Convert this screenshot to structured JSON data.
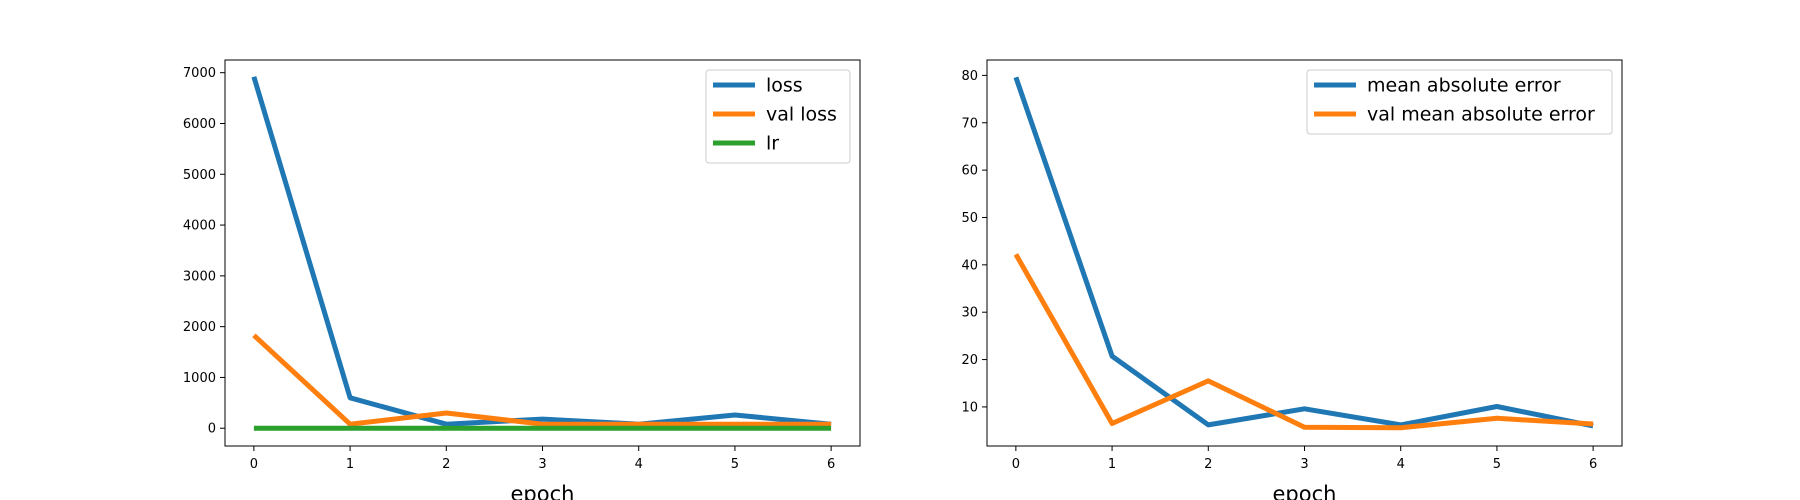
{
  "chart_data": [
    {
      "type": "line",
      "title": "",
      "xlabel": "epoch",
      "ylabel": "",
      "x": [
        0,
        1,
        2,
        3,
        4,
        5,
        6
      ],
      "xlim": [
        -0.3,
        6.3
      ],
      "ylim": [
        -350,
        7250
      ],
      "yticks": [
        0,
        1000,
        2000,
        3000,
        4000,
        5000,
        6000,
        7000
      ],
      "grid": false,
      "legend": "top-right",
      "series": [
        {
          "name": "loss",
          "color": "#1f77b4",
          "values": [
            6920,
            600,
            80,
            180,
            80,
            260,
            80
          ]
        },
        {
          "name": "val loss",
          "color": "#ff7f0e",
          "values": [
            1830,
            80,
            300,
            80,
            80,
            80,
            80
          ]
        },
        {
          "name": "lr",
          "color": "#2ca02c",
          "values": [
            0.001,
            0.001,
            0.001,
            0.001,
            0.001,
            0.001,
            0.001
          ]
        }
      ]
    },
    {
      "type": "line",
      "title": "",
      "xlabel": "epoch",
      "ylabel": "",
      "x": [
        0,
        1,
        2,
        3,
        4,
        5,
        6
      ],
      "xlim": [
        -0.3,
        6.3
      ],
      "ylim": [
        1.75,
        83.25
      ],
      "yticks": [
        10,
        20,
        30,
        40,
        50,
        60,
        70,
        80
      ],
      "grid": false,
      "legend": "top-right",
      "series": [
        {
          "name": "mean absolute error",
          "color": "#1f77b4",
          "values": [
            79.6,
            20.7,
            6.2,
            9.6,
            6.2,
            10.1,
            6.0
          ]
        },
        {
          "name": "val mean absolute error",
          "color": "#ff7f0e",
          "values": [
            42.2,
            6.5,
            15.5,
            5.7,
            5.6,
            7.6,
            6.4
          ]
        }
      ]
    }
  ]
}
